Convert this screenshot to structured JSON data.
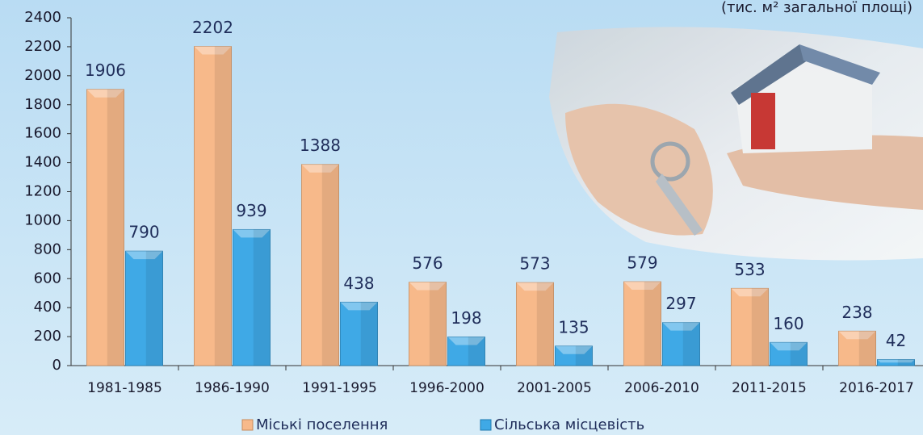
{
  "chart_data": {
    "type": "bar",
    "subtitle": "(тис. м² загальної площі)",
    "categories": [
      "1981-1985",
      "1986-1990",
      "1991-1995",
      "1996-2000",
      "2001-2005",
      "2006-2010",
      "2011-2015",
      "2016-2017"
    ],
    "series": [
      {
        "name": "Міські поселення",
        "color": "#f7b98a",
        "values": [
          1906,
          2202,
          1388,
          576,
          573,
          579,
          533,
          238
        ]
      },
      {
        "name": "Сільська місцевість",
        "color": "#3fa9e6",
        "values": [
          790,
          939,
          438,
          198,
          135,
          297,
          160,
          42
        ]
      }
    ],
    "ylim": [
      0,
      2400
    ],
    "yticks": [
      0,
      200,
      400,
      600,
      800,
      1000,
      1200,
      1400,
      1600,
      1800,
      2000,
      2200,
      2400
    ],
    "grid": false
  }
}
